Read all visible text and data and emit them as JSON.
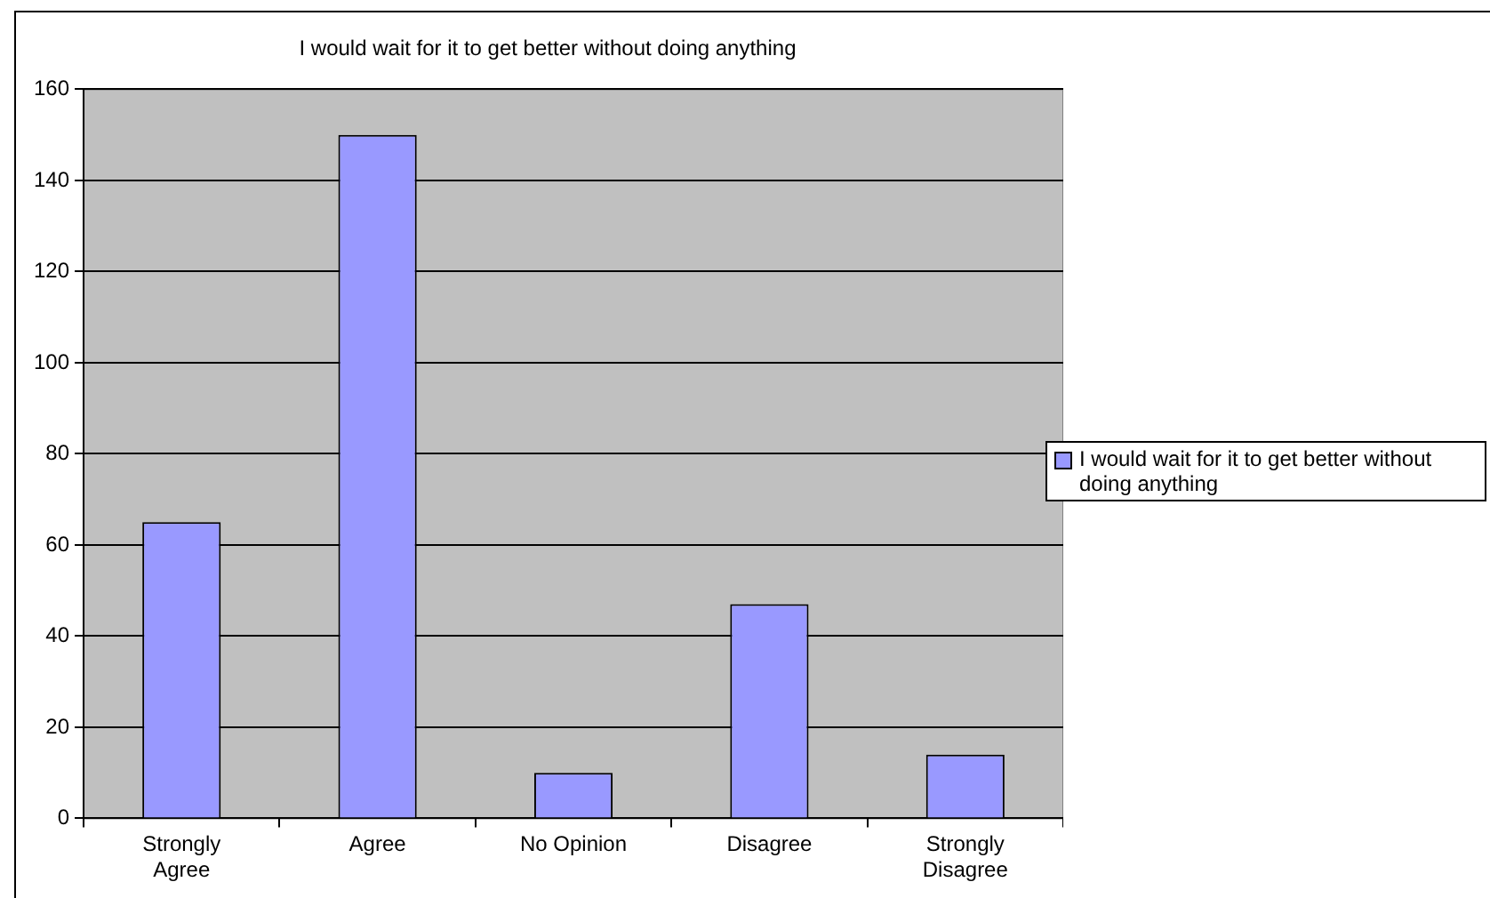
{
  "chart_data": {
    "type": "bar",
    "title": "I would wait for it to get better without doing anything",
    "categories": [
      "Strongly Agree",
      "Agree",
      "No Opinion",
      "Disagree",
      "Strongly Disagree"
    ],
    "series": [
      {
        "name": "I would wait for it to get better without doing anything",
        "color": "#9999ff",
        "values": [
          65,
          150,
          10,
          47,
          14
        ]
      }
    ],
    "ylim": [
      0,
      160
    ],
    "yticks": [
      0,
      20,
      40,
      60,
      80,
      100,
      120,
      140,
      160
    ],
    "grid": "y",
    "legend": "right"
  }
}
